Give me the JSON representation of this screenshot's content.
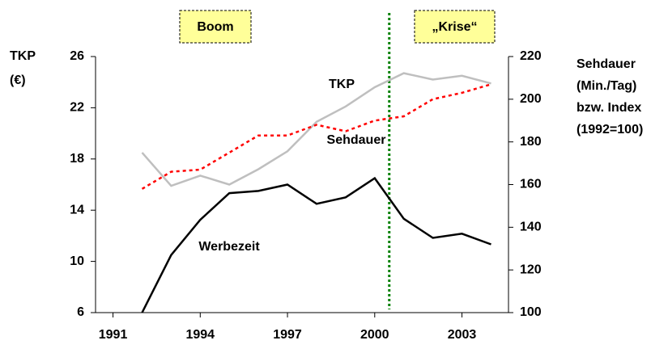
{
  "chart_data": {
    "type": "line",
    "x": [
      1992,
      1993,
      1994,
      1995,
      1996,
      1997,
      1998,
      1999,
      2000,
      2001,
      2002,
      2003,
      2004
    ],
    "series": [
      {
        "name": "TKP",
        "color": "#bfbfbf",
        "dash": "solid",
        "axis": "y",
        "values": [
          18.5,
          15.9,
          16.7,
          16.0,
          17.2,
          18.6,
          20.9,
          22.1,
          23.6,
          24.7,
          24.2,
          24.5,
          23.9
        ]
      },
      {
        "name": "Sehdauer",
        "color": "#ff0000",
        "dash": "dotted",
        "axis": "y2",
        "values": [
          158,
          166,
          167,
          175,
          183,
          183,
          188,
          185,
          190,
          192,
          200,
          203,
          207
        ]
      },
      {
        "name": "Werbezeit",
        "color": "#000000",
        "dash": "solid",
        "axis": "y2",
        "values": [
          100,
          127,
          143.5,
          156,
          157,
          160,
          151,
          154,
          163,
          144,
          135,
          137,
          132
        ]
      }
    ],
    "xlim": [
      1990.4,
      2004.6
    ],
    "xticks": [
      1991,
      1994,
      1997,
      2000,
      2003
    ],
    "ylim": [
      6,
      26
    ],
    "yticks": [
      6,
      10,
      14,
      18,
      22,
      26
    ],
    "y2lim": [
      100,
      220
    ],
    "y2ticks": [
      100,
      120,
      140,
      160,
      180,
      200,
      220
    ],
    "ylabel": [
      "TKP",
      "(€)"
    ],
    "y2label": [
      "Sehdauer",
      "(Min./Tag)",
      "bzw. Index",
      "(1992=100)"
    ],
    "phases": [
      {
        "label": "Boom"
      },
      {
        "label": "„Krise“"
      }
    ],
    "divider_x": 2000.5,
    "divider_color": "#008000"
  }
}
